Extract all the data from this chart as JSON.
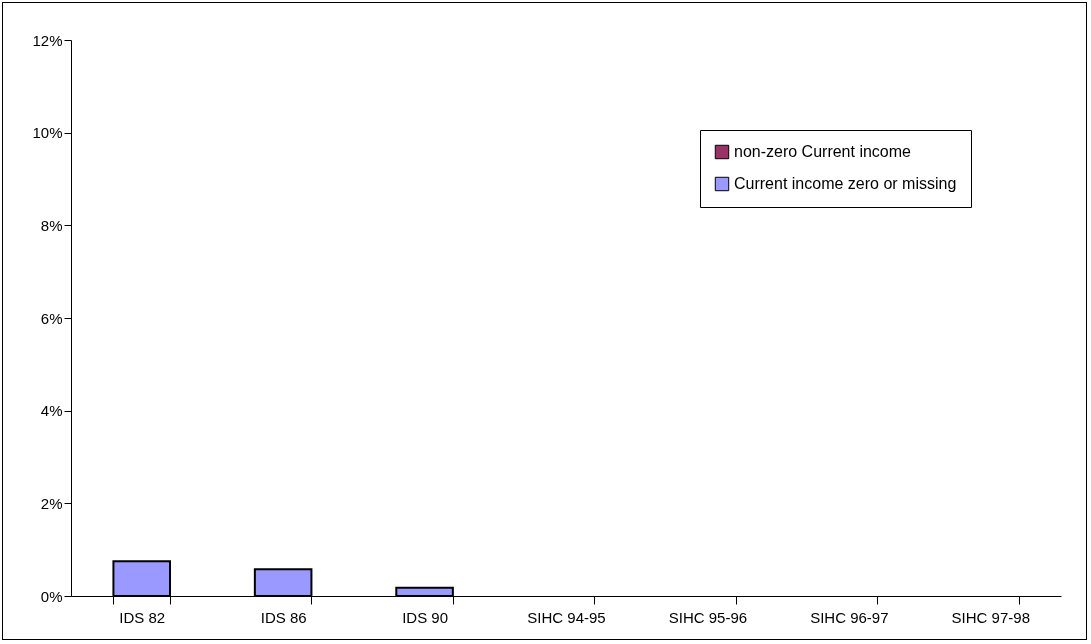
{
  "chart_data": {
    "type": "bar",
    "stacked": true,
    "legend": "top right",
    "grid": false,
    "categories": [
      "IDS 82",
      "IDS 86",
      "IDS 90",
      "SIHC 94-95",
      "SIHC 95-96",
      "SIHC 96-97",
      "SIHC 97-98"
    ],
    "series": [
      {
        "name": "non-zero Current income",
        "color": "#993366",
        "values": [
          0,
          0,
          0,
          0,
          0,
          0,
          0
        ]
      },
      {
        "name": "Current income zero or missing",
        "color": "#9999ff",
        "values": [
          0.75,
          0.58,
          0.18,
          0,
          0,
          0,
          0
        ]
      }
    ],
    "ylim": [
      0,
      12
    ],
    "yticks": [
      {
        "value": 0,
        "label": "0%"
      },
      {
        "value": 2,
        "label": "2%"
      },
      {
        "value": 4,
        "label": "4%"
      },
      {
        "value": 6,
        "label": "6%"
      },
      {
        "value": 8,
        "label": "8%"
      },
      {
        "value": 10,
        "label": "10%"
      },
      {
        "value": 12,
        "label": "12%"
      }
    ]
  }
}
